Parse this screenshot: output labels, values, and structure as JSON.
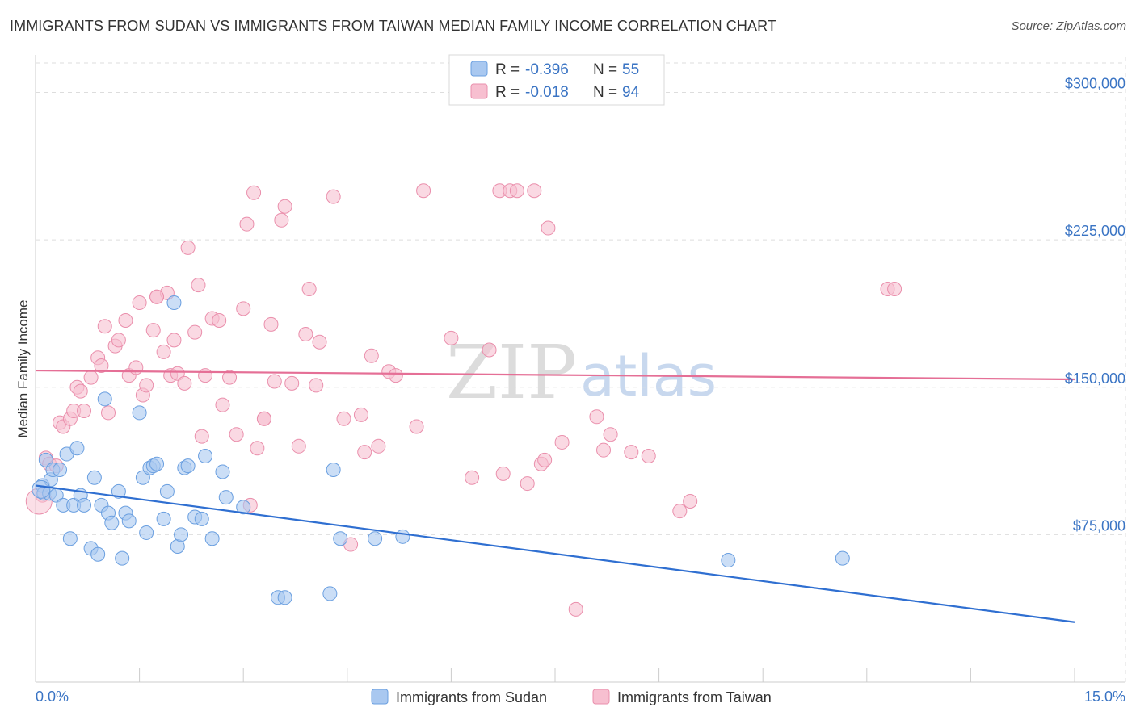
{
  "title": "IMMIGRANTS FROM SUDAN VS IMMIGRANTS FROM TAIWAN MEDIAN FAMILY INCOME CORRELATION CHART",
  "source": "Source: ZipAtlas.com",
  "watermark": {
    "zip": "ZIP",
    "atlas": "atlas"
  },
  "colors": {
    "sudan_fill": "#a9c8f0",
    "sudan_stroke": "#6a9fe0",
    "sudan_line": "#2f6fd1",
    "taiwan_fill": "#f7bfd0",
    "taiwan_stroke": "#ea8fac",
    "taiwan_line": "#e56f96",
    "grid": "#dddddd",
    "axis": "#cccccc"
  },
  "chart_data": {
    "type": "scatter",
    "xlabel": "",
    "ylabel": "Median Family Income",
    "xlim": [
      0,
      15
    ],
    "ylim": [
      0,
      315000
    ],
    "x_tick_labels": [
      "0.0%",
      "15.0%"
    ],
    "y_ticks": [
      75000,
      150000,
      225000,
      300000
    ],
    "y_tick_labels": [
      "$75,000",
      "$150,000",
      "$225,000",
      "$300,000"
    ],
    "legend": {
      "rows": [
        {
          "r_label": "R = ",
          "r_value": "-0.396",
          "n_label": "N = ",
          "n_value": "55"
        },
        {
          "r_label": "R = ",
          "r_value": "-0.018",
          "n_label": "N = ",
          "n_value": "94"
        }
      ]
    },
    "series": [
      {
        "name": "Immigrants from Sudan",
        "trend": {
          "x0": 0,
          "y0": 100000,
          "x1": 15,
          "y1": 30500
        },
        "points": [
          [
            0.1,
            100000
          ],
          [
            0.12,
            96000
          ],
          [
            0.15,
            113000
          ],
          [
            0.2,
            96000
          ],
          [
            0.22,
            103000
          ],
          [
            0.25,
            108000
          ],
          [
            0.3,
            95000
          ],
          [
            0.35,
            108000
          ],
          [
            0.4,
            90000
          ],
          [
            0.45,
            116000
          ],
          [
            0.5,
            73000
          ],
          [
            0.55,
            90000
          ],
          [
            0.6,
            119000
          ],
          [
            0.65,
            95000
          ],
          [
            0.7,
            90000
          ],
          [
            0.8,
            68000
          ],
          [
            0.85,
            104000
          ],
          [
            0.9,
            65000
          ],
          [
            0.95,
            90000
          ],
          [
            1.0,
            144000
          ],
          [
            1.05,
            86000
          ],
          [
            1.1,
            81000
          ],
          [
            1.2,
            97000
          ],
          [
            1.25,
            63000
          ],
          [
            1.3,
            86000
          ],
          [
            1.35,
            82000
          ],
          [
            1.5,
            137000
          ],
          [
            1.55,
            104000
          ],
          [
            1.6,
            76000
          ],
          [
            1.65,
            109000
          ],
          [
            1.7,
            110000
          ],
          [
            1.75,
            111000
          ],
          [
            1.85,
            83000
          ],
          [
            1.9,
            97000
          ],
          [
            2.0,
            193000
          ],
          [
            2.05,
            69000
          ],
          [
            2.1,
            75000
          ],
          [
            2.15,
            109000
          ],
          [
            2.2,
            110000
          ],
          [
            2.3,
            84000
          ],
          [
            2.4,
            83000
          ],
          [
            2.45,
            115000
          ],
          [
            2.55,
            73000
          ],
          [
            2.7,
            107000
          ],
          [
            2.75,
            94000
          ],
          [
            3.0,
            89000
          ],
          [
            3.5,
            43000
          ],
          [
            3.6,
            43000
          ],
          [
            4.25,
            45000
          ],
          [
            4.3,
            108000
          ],
          [
            4.4,
            73000
          ],
          [
            4.9,
            73000
          ],
          [
            5.3,
            74000
          ],
          [
            10.0,
            62000
          ],
          [
            11.65,
            63000
          ]
        ]
      },
      {
        "name": "Immigrants from Taiwan",
        "trend": {
          "x0": 0,
          "y0": 158500,
          "x1": 15,
          "y1": 154000
        },
        "points": [
          [
            0.1,
            95000
          ],
          [
            0.15,
            114000
          ],
          [
            0.2,
            111000
          ],
          [
            0.3,
            110000
          ],
          [
            0.35,
            132000
          ],
          [
            0.4,
            130000
          ],
          [
            0.5,
            134000
          ],
          [
            0.55,
            138000
          ],
          [
            0.6,
            150000
          ],
          [
            0.65,
            148000
          ],
          [
            0.7,
            138000
          ],
          [
            0.8,
            155000
          ],
          [
            0.9,
            165000
          ],
          [
            0.95,
            161000
          ],
          [
            1.0,
            181000
          ],
          [
            1.05,
            137000
          ],
          [
            1.15,
            171000
          ],
          [
            1.2,
            174000
          ],
          [
            1.3,
            184000
          ],
          [
            1.35,
            156000
          ],
          [
            1.45,
            160000
          ],
          [
            1.5,
            193000
          ],
          [
            1.55,
            146000
          ],
          [
            1.6,
            151000
          ],
          [
            1.7,
            179000
          ],
          [
            1.75,
            196000
          ],
          [
            1.85,
            168000
          ],
          [
            1.9,
            198000
          ],
          [
            1.95,
            156000
          ],
          [
            2.0,
            174000
          ],
          [
            2.05,
            157000
          ],
          [
            2.15,
            152000
          ],
          [
            2.2,
            221000
          ],
          [
            2.3,
            178000
          ],
          [
            2.35,
            202000
          ],
          [
            2.4,
            125000
          ],
          [
            2.45,
            156000
          ],
          [
            2.55,
            185000
          ],
          [
            2.65,
            184000
          ],
          [
            2.7,
            141000
          ],
          [
            2.8,
            155000
          ],
          [
            2.9,
            126000
          ],
          [
            3.0,
            190000
          ],
          [
            3.05,
            233000
          ],
          [
            3.1,
            90000
          ],
          [
            3.15,
            249000
          ],
          [
            3.2,
            119000
          ],
          [
            3.3,
            134000
          ],
          [
            3.4,
            182000
          ],
          [
            3.45,
            153000
          ],
          [
            3.55,
            235000
          ],
          [
            3.6,
            242000
          ],
          [
            3.7,
            152000
          ],
          [
            3.8,
            120000
          ],
          [
            3.9,
            177000
          ],
          [
            3.95,
            200000
          ],
          [
            4.05,
            151000
          ],
          [
            4.1,
            173000
          ],
          [
            4.3,
            247000
          ],
          [
            4.45,
            134000
          ],
          [
            4.55,
            70000
          ],
          [
            4.7,
            136000
          ],
          [
            4.75,
            117000
          ],
          [
            4.85,
            166000
          ],
          [
            4.95,
            120000
          ],
          [
            5.1,
            158000
          ],
          [
            5.2,
            156000
          ],
          [
            5.5,
            130000
          ],
          [
            5.6,
            250000
          ],
          [
            6.0,
            175000
          ],
          [
            6.3,
            104000
          ],
          [
            6.55,
            169000
          ],
          [
            6.7,
            250000
          ],
          [
            6.75,
            106000
          ],
          [
            6.85,
            250000
          ],
          [
            6.95,
            250000
          ],
          [
            7.1,
            101000
          ],
          [
            7.2,
            250000
          ],
          [
            7.3,
            111000
          ],
          [
            7.35,
            113000
          ],
          [
            7.4,
            231000
          ],
          [
            7.6,
            122000
          ],
          [
            7.8,
            37000
          ],
          [
            8.1,
            135000
          ],
          [
            8.2,
            118000
          ],
          [
            8.3,
            126000
          ],
          [
            8.6,
            117000
          ],
          [
            8.85,
            115000
          ],
          [
            9.3,
            87000
          ],
          [
            9.45,
            92000
          ],
          [
            12.3,
            200000
          ],
          [
            12.4,
            200000
          ],
          [
            3.3,
            134000
          ],
          [
            1.75,
            196000
          ]
        ]
      }
    ]
  }
}
